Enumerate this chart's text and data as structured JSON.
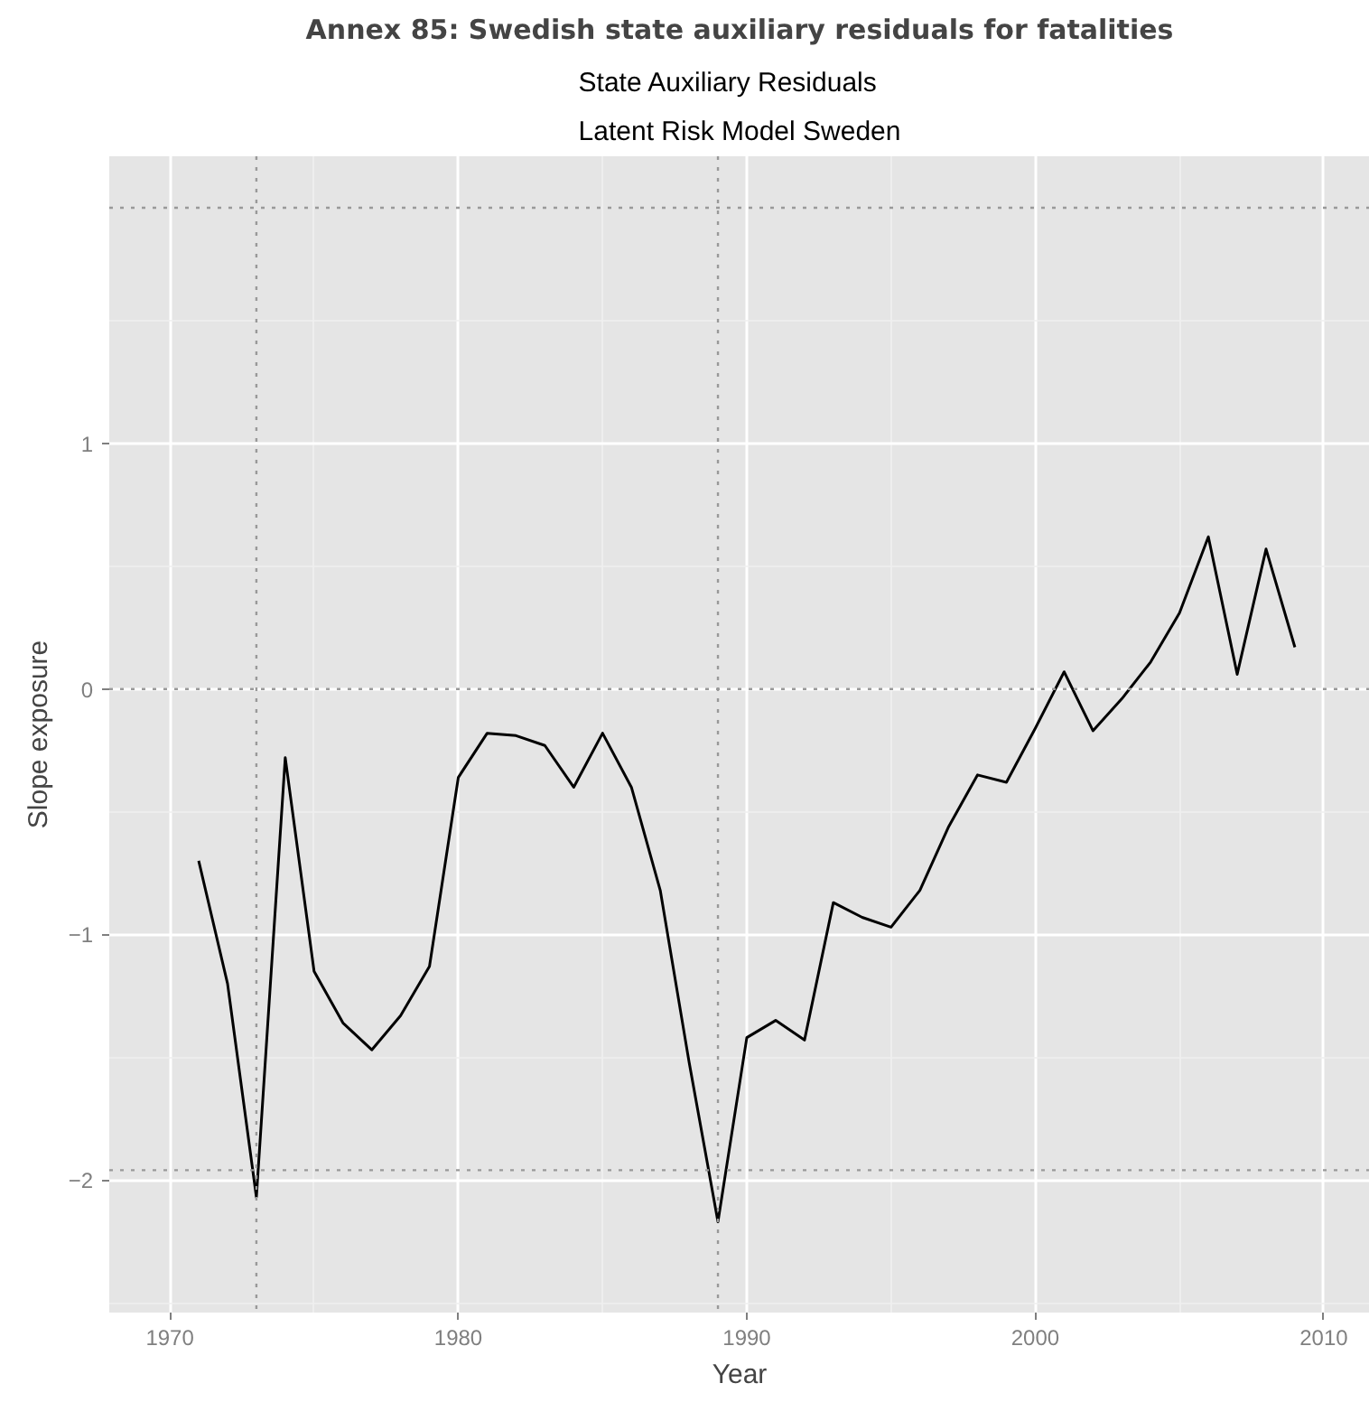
{
  "chart_data": {
    "type": "line",
    "title": "Annex 85: Swedish state auxiliary residuals for fatalities",
    "subtitle": "State Auxiliary Residuals\nLatent Risk Model Sweden",
    "xlabel": "Year",
    "ylabel": "Slope exposure",
    "x": [
      1971,
      1972,
      1973,
      1974,
      1975,
      1976,
      1977,
      1978,
      1979,
      1980,
      1981,
      1982,
      1983,
      1984,
      1985,
      1986,
      1987,
      1988,
      1989,
      1990,
      1991,
      1992,
      1993,
      1994,
      1995,
      1996,
      1997,
      1998,
      1999,
      2000,
      2001,
      2002,
      2003,
      2004,
      2005,
      2006,
      2007,
      2008,
      2009
    ],
    "series": [
      {
        "color": "#000000",
        "values": [
          -0.7,
          -1.2,
          -2.07,
          -0.28,
          -1.15,
          -1.36,
          -1.47,
          -1.33,
          -1.13,
          -0.36,
          -0.18,
          -0.19,
          -0.23,
          -0.4,
          -0.18,
          -0.4,
          -0.82,
          -1.52,
          -2.17,
          -1.42,
          -1.35,
          -1.43,
          -0.87,
          -0.93,
          -0.97,
          -0.82,
          -0.56,
          -0.35,
          -0.38,
          -0.16,
          0.07,
          -0.17,
          -0.04,
          0.11,
          0.31,
          0.62,
          0.06,
          0.57,
          0.17
        ]
      }
    ],
    "xlim": [
      1967.9,
      2011.6
    ],
    "ylim": [
      -2.54,
      2.17
    ],
    "xticks": [
      1970,
      1980,
      1990,
      2000,
      2010
    ],
    "yticks": [
      -2,
      -1,
      0,
      1
    ],
    "ref_lines": [
      {
        "axis": "y",
        "value": 1.96,
        "color": "#999999",
        "line_style": "dotted"
      },
      {
        "axis": "y",
        "value": 0,
        "color": "#999999",
        "line_style": "dotted"
      },
      {
        "axis": "y",
        "value": -1.96,
        "color": "#999999",
        "line_style": "dotted"
      },
      {
        "axis": "x",
        "value": 1973,
        "color": "#999999",
        "line_style": "dotted"
      },
      {
        "axis": "x",
        "value": 1989,
        "color": "#999999",
        "line_style": "dotted"
      }
    ],
    "grid": true,
    "line_style": "solid",
    "marker": "none"
  }
}
